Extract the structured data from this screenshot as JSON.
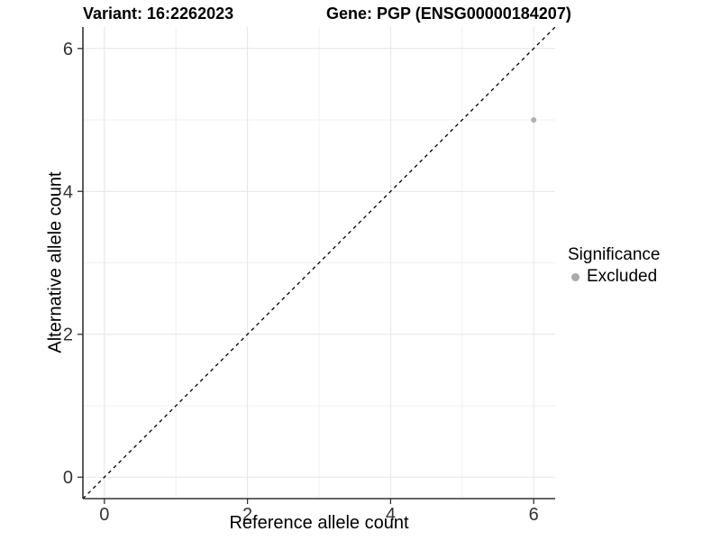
{
  "chart_data": {
    "type": "scatter",
    "titles": [
      "Variant: 16:2262023",
      "Gene: PGP (ENSG00000184207)"
    ],
    "xlabel": "Reference allele count",
    "ylabel": "Alternative allele count",
    "xlim": [
      -0.3,
      6.3
    ],
    "ylim": [
      -0.3,
      6.3
    ],
    "xticks": [
      0,
      2,
      4,
      6
    ],
    "yticks": [
      0,
      2,
      4,
      6
    ],
    "xticks_minor": [
      1,
      3,
      5
    ],
    "yticks_minor": [
      1,
      3,
      5
    ],
    "grid": "on",
    "background": "#ffffff",
    "points": [
      {
        "x": 6,
        "y": 5,
        "series": "Excluded"
      }
    ],
    "reference_line": {
      "kind": "identity y=x",
      "style": "dashed",
      "color": "#000000"
    },
    "legend": {
      "title": "Significance",
      "position": "right",
      "entries": [
        {
          "label": "Excluded",
          "color": "#aaaaaa",
          "marker": "circle"
        }
      ]
    },
    "colors": {
      "point": "#b0b0b0",
      "grid_major": "#e5e5e5",
      "grid_minor": "#f0f0f0",
      "axis_line": "#333333",
      "tick_text": "#333333"
    }
  }
}
